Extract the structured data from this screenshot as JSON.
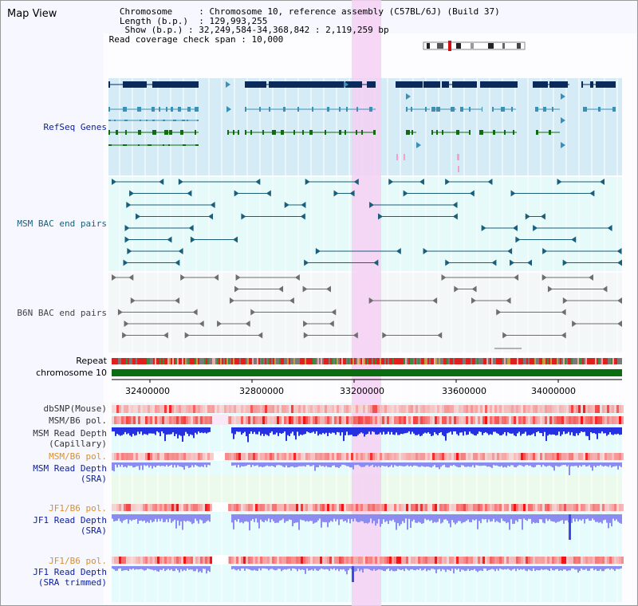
{
  "app": {
    "title": "Map View"
  },
  "header": {
    "chromosome_key": "Chromosome",
    "chromosome_val": "Chromosome 10, reference assembly (C57BL/6J) (Build 37)",
    "length_key": "Length (b.p.)",
    "length_val": "129,993,255",
    "show_key": "Show (b.p.)",
    "show_val": "32,249,584-34,368,842 : 2,119,259 bp",
    "span_key": "Read coverage check span",
    "span_val": "10,000"
  },
  "tracks": {
    "refseq": "RefSeq Genes",
    "msm_bac": "MSM BAC end pairs",
    "b6n_bac": "B6N BAC end pairs",
    "repeat": "Repeat",
    "chromosome": "chromosome 10",
    "dbsnp": "dbSNP(Mouse)",
    "msm_pol": "MSM/B6 pol.",
    "msm_depth_cap_1": "MSM Read Depth",
    "msm_depth_cap_2": "(Capillary)",
    "msm_pol_sra": "MSM/B6 pol.",
    "msm_depth_sra_1": "MSM Read Depth",
    "msm_depth_sra_2": "(SRA)",
    "jf1_pol": "JF1/B6 pol.",
    "jf1_depth_1": "JF1 Read Depth",
    "jf1_depth_2": "(SRA)",
    "jf1_pol_trim": "JF1/B6 pol.",
    "jf1_trim_1": "JF1 Read Depth",
    "jf1_trim_2": "(SRA trimmed)"
  },
  "axis": {
    "ticks": [
      "32400000",
      "32800000",
      "33200000",
      "33600000",
      "34000000"
    ]
  },
  "colors": {
    "refseq_bg": "#d5ecf7",
    "bac_bg": "#e6fafa",
    "highlight": "#f5d0f3",
    "gene_dark": "#0b2a5c",
    "gene_mid": "#3c8fb5",
    "gene_green": "#0f6d10",
    "bac_color": "#1b5e7a",
    "b6n_color": "#6e6e6e",
    "label_blue": "#0a1e9c",
    "label_orange": "#d8902a",
    "depth_blue": "#2530e0",
    "depth_light": "#8c8cf0"
  }
}
